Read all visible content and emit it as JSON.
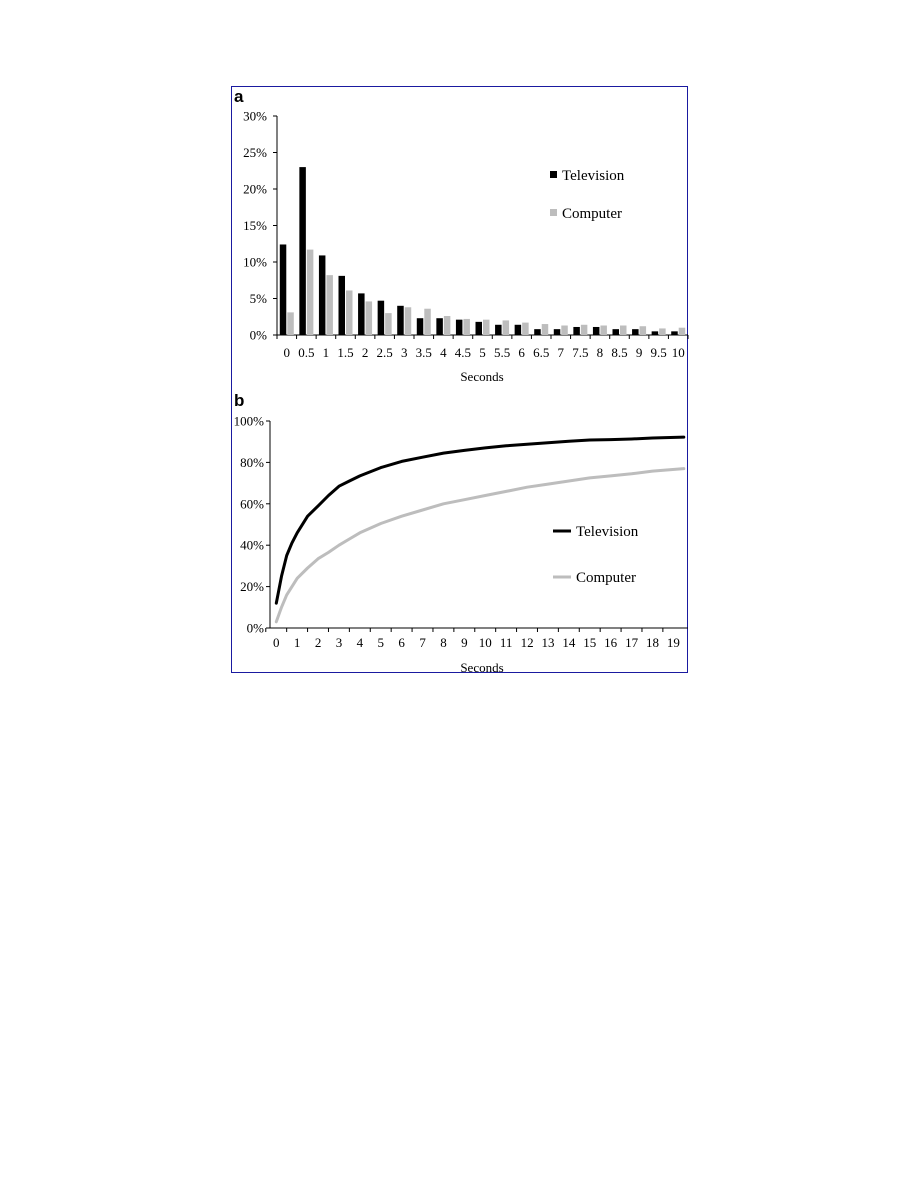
{
  "chart_data": [
    {
      "panel": "a",
      "type": "bar",
      "categories": [
        "0",
        "0.5",
        "1",
        "1.5",
        "2",
        "2.5",
        "3",
        "3.5",
        "4",
        "4.5",
        "5",
        "5.5",
        "6",
        "6.5",
        "7",
        "7.5",
        "8",
        "8.5",
        "9",
        "9.5",
        "10"
      ],
      "series": [
        {
          "name": "Television",
          "color": "#000000",
          "values": [
            12.4,
            23.0,
            10.9,
            8.1,
            5.7,
            4.7,
            4.0,
            2.3,
            2.3,
            2.1,
            1.8,
            1.4,
            1.4,
            0.8,
            0.8,
            1.1,
            1.1,
            0.8,
            0.8,
            0.5,
            0.5
          ]
        },
        {
          "name": "Computer",
          "color": "#bdbdbd",
          "values": [
            3.1,
            11.7,
            8.2,
            6.1,
            4.6,
            3.0,
            3.8,
            3.6,
            2.6,
            2.2,
            2.1,
            2.0,
            1.7,
            1.5,
            1.3,
            1.4,
            1.3,
            1.3,
            1.2,
            0.9,
            1.0
          ]
        }
      ],
      "yticks": [
        "0%",
        "5%",
        "10%",
        "15%",
        "20%",
        "25%",
        "30%"
      ],
      "ylim": [
        0,
        30
      ],
      "xlabel": "Seconds",
      "ylabel": "",
      "legend_position": "top-right"
    },
    {
      "panel": "b",
      "type": "line",
      "x_ticks": [
        "0",
        "1",
        "2",
        "3",
        "4",
        "5",
        "6",
        "7",
        "8",
        "9",
        "10",
        "11",
        "12",
        "13",
        "14",
        "15",
        "16",
        "17",
        "18",
        "19"
      ],
      "series": [
        {
          "name": "Television",
          "color": "#000000",
          "x": [
            0,
            0.25,
            0.5,
            0.75,
            1,
            1.5,
            2,
            2.5,
            3,
            3.5,
            4,
            5,
            6,
            7,
            8,
            9,
            10,
            11,
            12,
            13,
            14,
            15,
            16,
            17,
            18,
            19.5
          ],
          "y": [
            12,
            25,
            35,
            41,
            46,
            54,
            59,
            64,
            68.5,
            71,
            73.5,
            77.5,
            80.5,
            82.5,
            84.5,
            85.8,
            87,
            88,
            88.8,
            89.5,
            90.2,
            90.8,
            91,
            91.3,
            91.8,
            92.2
          ]
        },
        {
          "name": "Computer",
          "color": "#bdbdbd",
          "x": [
            0,
            0.25,
            0.5,
            1,
            1.5,
            2,
            2.5,
            3,
            3.5,
            4,
            5,
            6,
            7,
            8,
            9,
            10,
            11,
            12,
            13,
            14,
            15,
            16,
            17,
            18,
            19.5
          ],
          "y": [
            3,
            10,
            16,
            24,
            29,
            33.5,
            36.5,
            40,
            43,
            46,
            50.5,
            54,
            57,
            60,
            62,
            64,
            66,
            68,
            69.5,
            71,
            72.5,
            73.5,
            74.5,
            75.8,
            77
          ]
        }
      ],
      "yticks": [
        "0%",
        "20%",
        "40%",
        "60%",
        "80%",
        "100%"
      ],
      "ylim": [
        0,
        100
      ],
      "xlim": [
        -0.3,
        19.7
      ],
      "xlabel": "Seconds",
      "ylabel": "",
      "legend_position": "right"
    }
  ]
}
